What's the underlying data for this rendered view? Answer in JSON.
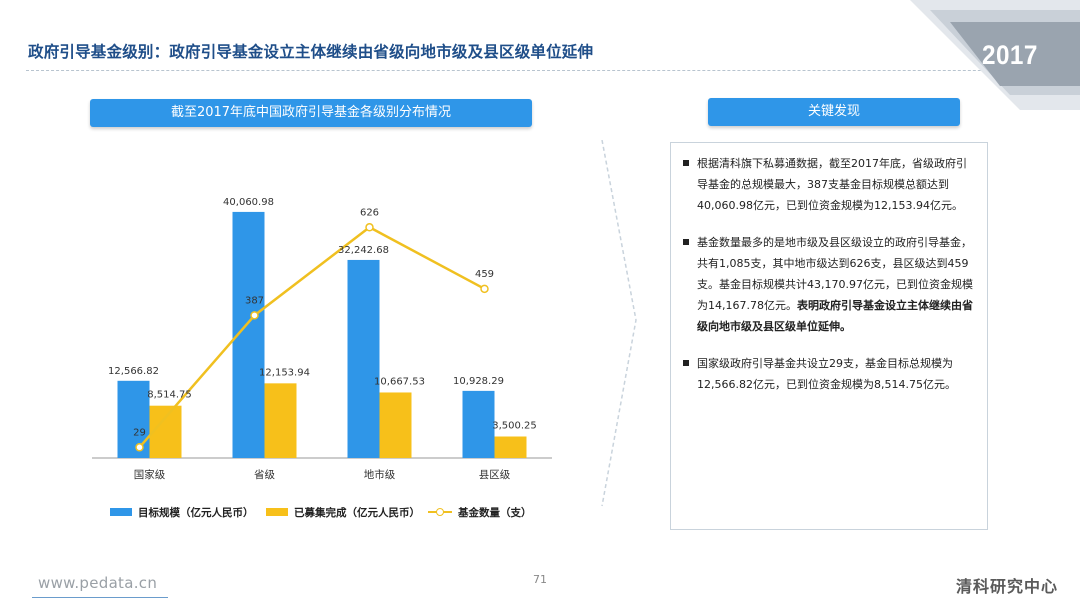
{
  "header": {
    "title": "政府引导基金级别：政府引导基金设立主体继续由省级向地市级及县区级单位延伸",
    "year": "2017"
  },
  "chart_title": "截至2017年底中国政府引导基金各级别分布情况",
  "chart_data": {
    "type": "bar",
    "categories": [
      "国家级",
      "省级",
      "地市级",
      "县区级"
    ],
    "series": [
      {
        "name": "目标规模（亿元人民币）",
        "type": "bar",
        "color": "#2f96e8",
        "values": [
          12566.82,
          40060.98,
          32242.68,
          10928.29
        ],
        "labels": [
          "12,566.82",
          "40,060.98",
          "32,242.68",
          "10,928.29"
        ]
      },
      {
        "name": "已募集完成（亿元人民币）",
        "type": "bar",
        "color": "#f7c01a",
        "values": [
          8514.75,
          12153.94,
          10667.53,
          3500.25
        ],
        "labels": [
          "8,514.75",
          "12,153.94",
          "10,667.53",
          "3,500.25"
        ]
      },
      {
        "name": "基金数量（支）",
        "type": "line",
        "color": "#f0c020",
        "values": [
          29,
          387,
          626,
          459
        ],
        "labels": [
          "29",
          "387",
          "626",
          "459"
        ]
      }
    ],
    "ylim_bars": [
      0,
      42000
    ],
    "ylim_line": [
      0,
      700
    ],
    "grid": false,
    "legend_position": "bottom"
  },
  "findings_title": "关键发现",
  "findings": [
    {
      "text": "根据清科旗下私募通数据，截至2017年底，省级政府引导基金的总规模最大，387支基金目标规模总额达到40,060.98亿元，已到位资金规模为12,153.94亿元。",
      "bold": ""
    },
    {
      "text": "基金数量最多的是地市级及县区级设立的政府引导基金，共有1,085支，其中地市级达到626支，县区级达到459支。基金目标规模共计43,170.97亿元，已到位资金规模为14,167.78亿元。",
      "bold": "表明政府引导基金设立主体继续由省级向地市级及县区级单位延伸。"
    },
    {
      "text": "国家级政府引导基金共设立29支，基金目标总规模为12,566.82亿元，已到位资金规模为8,514.75亿元。",
      "bold": ""
    }
  ],
  "footer": {
    "page": "71",
    "website": "www.pedata.cn",
    "brand": "清科研究中心"
  }
}
